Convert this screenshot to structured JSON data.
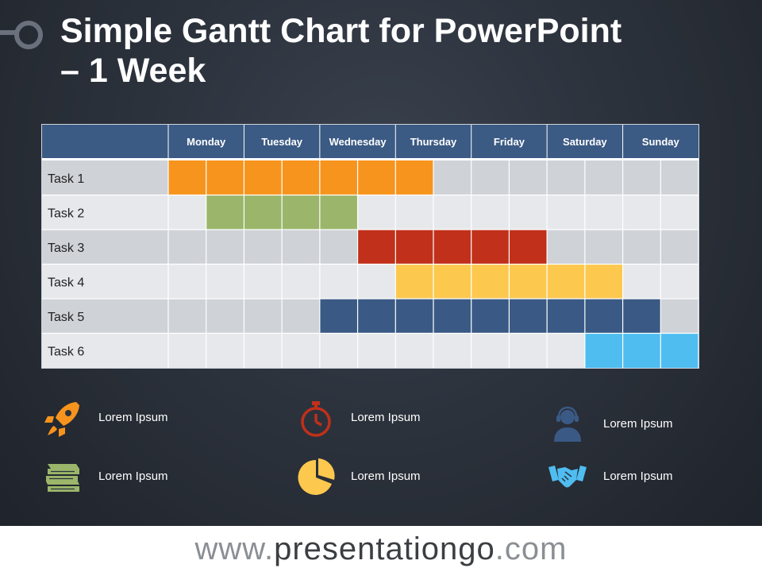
{
  "title": {
    "line1": "Simple Gantt Chart for PowerPoint",
    "line2": "– 1 Week"
  },
  "chart_data": {
    "type": "gantt",
    "days": [
      "Monday",
      "Tuesday",
      "Wednesday",
      "Thursday",
      "Friday",
      "Saturday",
      "Sunday"
    ],
    "slots_per_day": 2,
    "tasks": [
      {
        "name": "Task 1",
        "start_slot": 0,
        "end_slot": 7,
        "color": "#f7941d"
      },
      {
        "name": "Task 2",
        "start_slot": 1,
        "end_slot": 5,
        "color": "#9bb66a"
      },
      {
        "name": "Task 3",
        "start_slot": 5,
        "end_slot": 10,
        "color": "#c0301a"
      },
      {
        "name": "Task 4",
        "start_slot": 6,
        "end_slot": 12,
        "color": "#fdc84e"
      },
      {
        "name": "Task 5",
        "start_slot": 4,
        "end_slot": 13,
        "color": "#3a5a85"
      },
      {
        "name": "Task 6",
        "start_slot": 11,
        "end_slot": 14,
        "color": "#4fbdf0"
      }
    ],
    "header_color": "#3b5a84",
    "row_color_odd": "#cfd3d8",
    "row_color_even": "#e6e8eb"
  },
  "legend": [
    {
      "icon": "rocket-icon",
      "label": "Lorem Ipsum",
      "color": "#f7941d"
    },
    {
      "icon": "stopwatch-icon",
      "label": "Lorem Ipsum",
      "color": "#c0301a"
    },
    {
      "icon": "support-agent-icon",
      "label": "Lorem Ipsum",
      "color": "#3a5a85"
    },
    {
      "icon": "books-icon",
      "label": "Lorem Ipsum",
      "color": "#9bb66a"
    },
    {
      "icon": "pie-chart-icon",
      "label": "Lorem Ipsum",
      "color": "#fdc84e"
    },
    {
      "icon": "handshake-icon",
      "label": "Lorem Ipsum",
      "color": "#4fbdf0"
    }
  ],
  "footer": {
    "prefix": "www.",
    "brand": "presentationgo",
    "suffix": ".com"
  }
}
